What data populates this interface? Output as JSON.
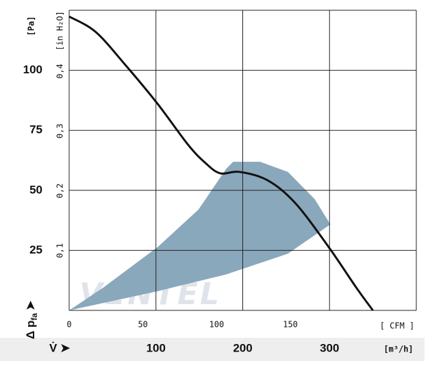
{
  "chart_data": {
    "type": "fan-curve",
    "y_unit": "[Pa]",
    "y2_unit": "[in H₂O]",
    "y_label": {
      "main": "Δ p",
      "sub": "fa",
      "arrow": "➤"
    },
    "x_label": "V̇ ➤",
    "x_unit": "[m³/h]",
    "x2_unit": "[ CFM ]",
    "watermark": "VENTEL",
    "xlim": [
      0,
      400
    ],
    "xticks": [
      100,
      200,
      300
    ],
    "xgrid": [
      100,
      200,
      300,
      400
    ],
    "x2lim": [
      0,
      235.4
    ],
    "x2ticks": [
      0,
      50,
      100,
      150
    ],
    "ylim": [
      0,
      125
    ],
    "yticks": [
      25,
      50,
      75,
      100
    ],
    "ygrid": [
      25,
      50,
      75,
      100,
      125
    ],
    "y2lim": [
      0,
      0.502
    ],
    "y2ticks": [
      {
        "value": 0.1,
        "label": "0,1"
      },
      {
        "value": 0.2,
        "label": "0,2"
      },
      {
        "value": 0.3,
        "label": "0,3"
      },
      {
        "value": 0.4,
        "label": "0,4"
      }
    ],
    "region": {
      "color": "#8aa8bc",
      "x": [
        0,
        102,
        181,
        252,
        301,
        283,
        252,
        220,
        189,
        181,
        149,
        102,
        39
      ],
      "y": [
        0,
        8,
        15,
        23.6,
        35.8,
        46.3,
        57.7,
        61.9,
        61.9,
        59,
        42,
        26.4,
        9.4
      ]
    },
    "series": [
      {
        "color": "#111111",
        "x": [
          0,
          30.8,
          66,
          102,
          137,
          157,
          174,
          196,
          228,
          260,
          299,
          331,
          350
        ],
        "values": [
          122.4,
          115.9,
          101.7,
          86,
          69,
          61.4,
          57.1,
          57.7,
          54.3,
          44.9,
          26.4,
          9.4,
          0
        ]
      }
    ],
    "grid": true
  }
}
